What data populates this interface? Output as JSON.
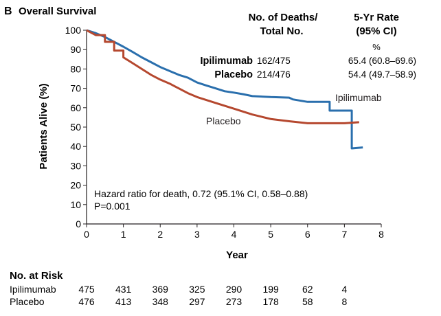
{
  "chart_data": {
    "type": "line",
    "panel_label": "B",
    "title": "Overall Survival",
    "xlabel": "Year",
    "ylabel": "Patients Alive (%)",
    "xlim": [
      0,
      8
    ],
    "ylim": [
      0,
      100
    ],
    "xticks": [
      0,
      1,
      2,
      3,
      4,
      5,
      6,
      7,
      8
    ],
    "yticks": [
      0,
      10,
      20,
      30,
      40,
      50,
      60,
      70,
      80,
      90,
      100
    ],
    "grid": false,
    "table_header": {
      "deaths_line1": "No. of Deaths/",
      "deaths_line2": "Total No.",
      "rate_line1": "5-Yr Rate",
      "rate_line2": "(95% CI)",
      "rate_unit": "%"
    },
    "table_rows": [
      {
        "group": "Ipilimumab",
        "deaths": "162/475",
        "rate": "65.4 (60.8–69.6)"
      },
      {
        "group": "Placebo",
        "deaths": "214/476",
        "rate": "54.4 (49.7–58.9)"
      }
    ],
    "annotation_line1": "Hazard ratio for death, 0.72 (95.1% CI, 0.58–0.88)",
    "annotation_line2": "P=0.001",
    "series": [
      {
        "name": "Ipilimumab",
        "color": "#2a6fad",
        "x": [
          0,
          0.25,
          0.5,
          0.75,
          1.0,
          1.25,
          1.5,
          1.75,
          2.0,
          2.25,
          2.5,
          2.75,
          3.0,
          3.25,
          3.5,
          3.75,
          4.0,
          4.25,
          4.5,
          5.0,
          5.5,
          5.6,
          6.0,
          6.5,
          6.6,
          7.0,
          7.2,
          7.5
        ],
        "y": [
          100,
          98.5,
          96.5,
          94,
          91.5,
          88.8,
          86,
          83.5,
          81,
          79,
          77,
          75.5,
          73,
          71.5,
          70,
          68.5,
          67.8,
          67,
          66,
          65.5,
          65.2,
          64.3,
          63,
          63,
          58.5,
          58.5,
          39,
          39.5
        ]
      },
      {
        "name": "Placebo",
        "color": "#b5482f",
        "x": [
          0,
          0.25,
          0.5,
          0.75,
          1.0,
          1.25,
          1.5,
          1.75,
          2.0,
          2.25,
          2.5,
          2.75,
          3.0,
          3.5,
          4.0,
          4.5,
          5.0,
          5.5,
          6.0,
          6.5,
          7.0,
          7.4
        ],
        "y": [
          100,
          97.5,
          94,
          89.5,
          86,
          83,
          80,
          77,
          74.5,
          72.5,
          70,
          67.5,
          65.5,
          62.5,
          59.5,
          56.5,
          54.2,
          53,
          52,
          52,
          52,
          52.5
        ]
      }
    ],
    "curve_labels": {
      "ipilimumab": "Ipilimumab",
      "placebo": "Placebo"
    },
    "risk_table": {
      "title": "No. at Risk",
      "rows": [
        {
          "group": "Ipilimumab",
          "values": [
            "475",
            "431",
            "369",
            "325",
            "290",
            "199",
            "62",
            "4"
          ]
        },
        {
          "group": "Placebo",
          "values": [
            "476",
            "413",
            "348",
            "297",
            "273",
            "178",
            "58",
            "8"
          ]
        }
      ]
    }
  }
}
